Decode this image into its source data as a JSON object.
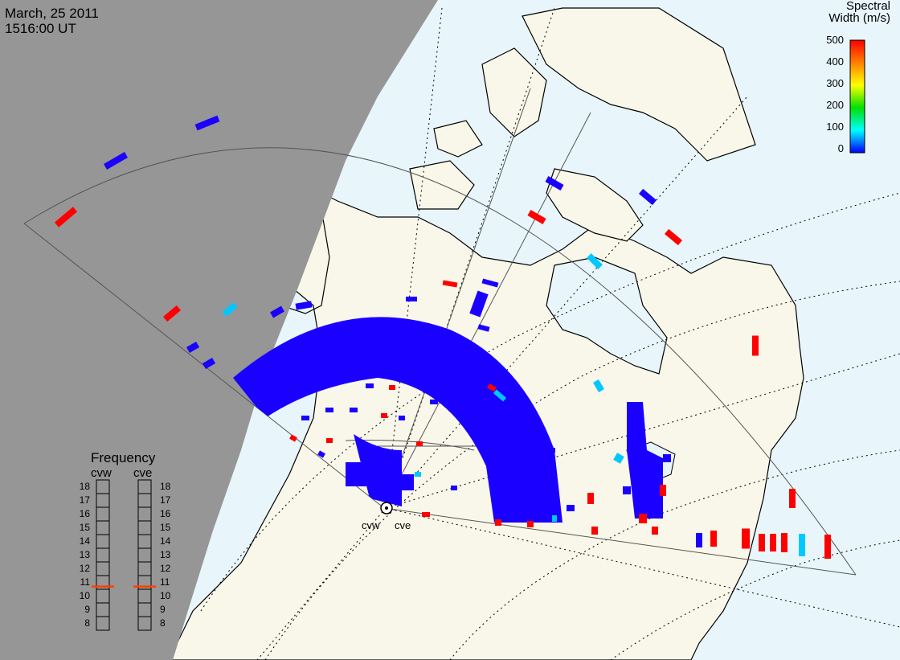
{
  "header": {
    "date": "March, 25 2011",
    "time": "1516:00 UT"
  },
  "colorbar": {
    "title_line1": "Spectral",
    "title_line2": "Width (m/s)",
    "ticks": [
      "500",
      "400",
      "300",
      "200",
      "100",
      "0"
    ],
    "range": [
      0,
      500
    ],
    "gradient_stops": [
      "#ff0000",
      "#ff8000",
      "#ffff00",
      "#00e000",
      "#00ffff",
      "#0000ff"
    ]
  },
  "radars": [
    {
      "code": "cvw",
      "frequency_mhz": 10.7
    },
    {
      "code": "cve",
      "frequency_mhz": 10.7
    }
  ],
  "frequency_panel": {
    "title": "Frequency",
    "scale": [
      "18",
      "17",
      "16",
      "15",
      "14",
      "13",
      "12",
      "11",
      "10",
      "9",
      "8"
    ],
    "range": [
      8,
      18
    ],
    "marker_color": "#ff4000"
  },
  "colors": {
    "night": "#969696",
    "ocean": "#e8f6fc",
    "land": "#f8f7e9",
    "coast": "#000000",
    "fov": "#555555",
    "low_width": "#1a00ff",
    "high_width": "#ff0000",
    "mid_width": "#00c8ff"
  }
}
